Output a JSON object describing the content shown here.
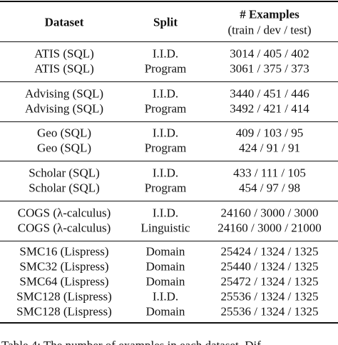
{
  "table": {
    "header": [
      "Dataset",
      "Split",
      "# Examples",
      "(train / dev / test)"
    ],
    "groups": [
      {
        "rows": [
          [
            "ATIS (SQL)",
            "I.I.D.",
            "3014 / 405 / 402"
          ],
          [
            "ATIS (SQL)",
            "Program",
            "3061 / 375 / 373"
          ]
        ]
      },
      {
        "rows": [
          [
            "Advising (SQL)",
            "I.I.D.",
            "3440 / 451 / 446"
          ],
          [
            "Advising (SQL)",
            "Program",
            "3492 / 421 / 414"
          ]
        ]
      },
      {
        "rows": [
          [
            "Geo (SQL)",
            "I.I.D.",
            "409 / 103 / 95"
          ],
          [
            "Geo (SQL)",
            "Program",
            "424 / 91 / 91"
          ]
        ]
      },
      {
        "rows": [
          [
            "Scholar (SQL)",
            "I.I.D.",
            "433 / 111 / 105"
          ],
          [
            "Scholar (SQL)",
            "Program",
            "454 / 97 / 98"
          ]
        ]
      },
      {
        "rows": [
          [
            "COGS (λ-calculus)",
            "I.I.D.",
            "24160 / 3000 / 3000"
          ],
          [
            "COGS (λ-calculus)",
            "Linguistic",
            "24160 / 3000 / 21000"
          ]
        ]
      },
      {
        "rows": [
          [
            "SMC16 (Lispress)",
            "Domain",
            "25424 / 1324 / 1325"
          ],
          [
            "SMC32 (Lispress)",
            "Domain",
            "25440 / 1324 / 1325"
          ],
          [
            "SMC64 (Lispress)",
            "Domain",
            "25472 / 1324 / 1325"
          ],
          [
            "SMC128 (Lispress)",
            "I.I.D.",
            "25536 / 1324 / 1325"
          ],
          [
            "SMC128 (Lispress)",
            "Domain",
            "25536 / 1324 / 1325"
          ]
        ]
      }
    ]
  },
  "caption": "Table 4: The number of examples in each dataset. Dif"
}
